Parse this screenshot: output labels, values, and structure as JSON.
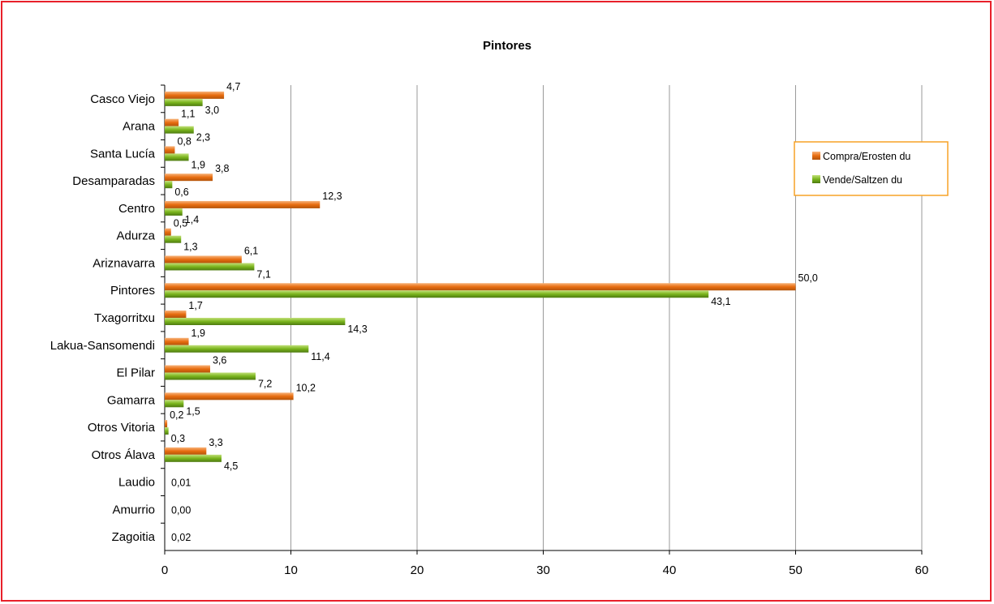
{
  "chart_data": {
    "type": "bar",
    "orientation": "horizontal",
    "title": "Pintores",
    "xlabel": "",
    "ylabel": "",
    "xlim": [
      0,
      60
    ],
    "x_ticks": [
      0,
      10,
      20,
      30,
      40,
      50,
      60
    ],
    "grid": "vertical",
    "legend_position": "right",
    "categories": [
      "Casco Viejo",
      "Arana",
      "Santa Lucía",
      "Desamparadas",
      "Centro",
      "Adurza",
      "Ariznavarra",
      "Pintores",
      "Txagorritxu",
      "Lakua-Sansomendi",
      "El Pilar",
      "Gamarra",
      "Otros Vitoria",
      "Otros Álava",
      "Laudio",
      "Amurrio",
      "Zagoitia"
    ],
    "series": [
      {
        "name": "Compra/Erosten du",
        "color": "#e86d10",
        "values": [
          4.7,
          1.1,
          0.8,
          3.8,
          12.3,
          0.5,
          6.1,
          50.0,
          1.7,
          1.9,
          3.6,
          10.2,
          0.2,
          3.3,
          null,
          null,
          null
        ],
        "labels": [
          "4,7",
          "1,1",
          "0,8",
          "3,8",
          "12,3",
          "0,5",
          "6,1",
          "50,0",
          "1,7",
          "1,9",
          "3,6",
          "10,2",
          "0,2",
          "3,3",
          "",
          "",
          ""
        ]
      },
      {
        "name": "Vende/Saltzen du",
        "color": "#7ab51d",
        "values": [
          3.0,
          2.3,
          1.9,
          0.6,
          1.4,
          1.3,
          7.1,
          43.1,
          14.3,
          11.4,
          7.2,
          1.5,
          0.3,
          4.5,
          null,
          null,
          null
        ],
        "labels": [
          "3,0",
          "2,3",
          "1,9",
          "0,6",
          "1,4",
          "1,3",
          "7,1",
          "43,1",
          "14,3",
          "11,4",
          "7,2",
          "1,5",
          "0,3",
          "4,5",
          "",
          "",
          ""
        ]
      }
    ],
    "single_labels": [
      "",
      "",
      "",
      "",
      "",
      "",
      "",
      "",
      "",
      "",
      "",
      "",
      "",
      "",
      "0,01",
      "0,00",
      "0,02"
    ]
  }
}
